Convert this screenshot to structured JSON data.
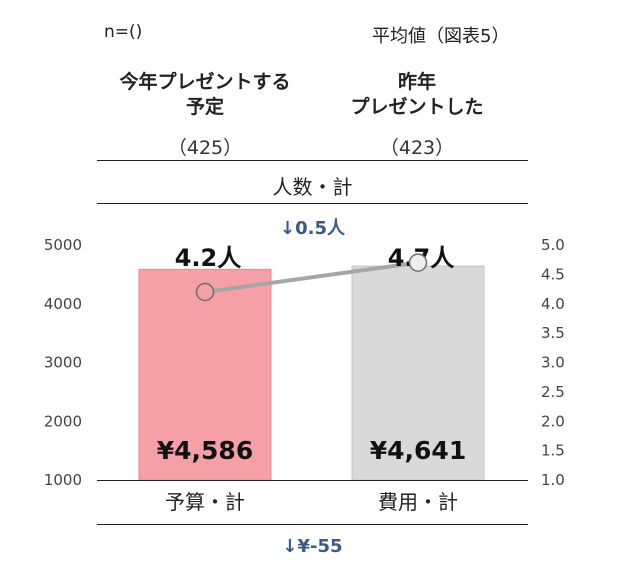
{
  "header": {
    "n_label": "n=()",
    "title": "平均値（図表5）"
  },
  "groups": [
    {
      "label_line1": "今年プレゼントする",
      "label_line2": "予定",
      "n": "（425）"
    },
    {
      "label_line1": "昨年",
      "label_line2": "プレゼントした",
      "n": "（423）"
    }
  ],
  "count_section": {
    "label": "人数・計",
    "difference": "↓0.5人"
  },
  "budget_section": {
    "difference": "↓¥-55"
  },
  "colors": {
    "bar_this_year": "#f4a0a6",
    "bar_last_year": "#d9d9d9",
    "line": "#a6a6a6",
    "accent_text": "#3a5a8c"
  },
  "chart_data": {
    "type": "bar",
    "categories": [
      "予算・計",
      "費用・計"
    ],
    "values": [
      4586,
      4641
    ],
    "value_labels": [
      "¥4,586",
      "¥4,641"
    ],
    "ylim": [
      1000,
      5000
    ],
    "y_ticks": [
      "1000",
      "2000",
      "3000",
      "4000",
      "5000"
    ],
    "grid": false,
    "line_series": {
      "values": [
        4.2,
        4.7
      ],
      "value_labels": [
        "4.2人",
        "4.7人"
      ],
      "ylim": [
        1.0,
        5.0
      ],
      "y_ticks": [
        "1.0",
        "1.5",
        "2.0",
        "2.5",
        "3.0",
        "3.5",
        "4.0",
        "4.5",
        "5.0"
      ]
    }
  }
}
